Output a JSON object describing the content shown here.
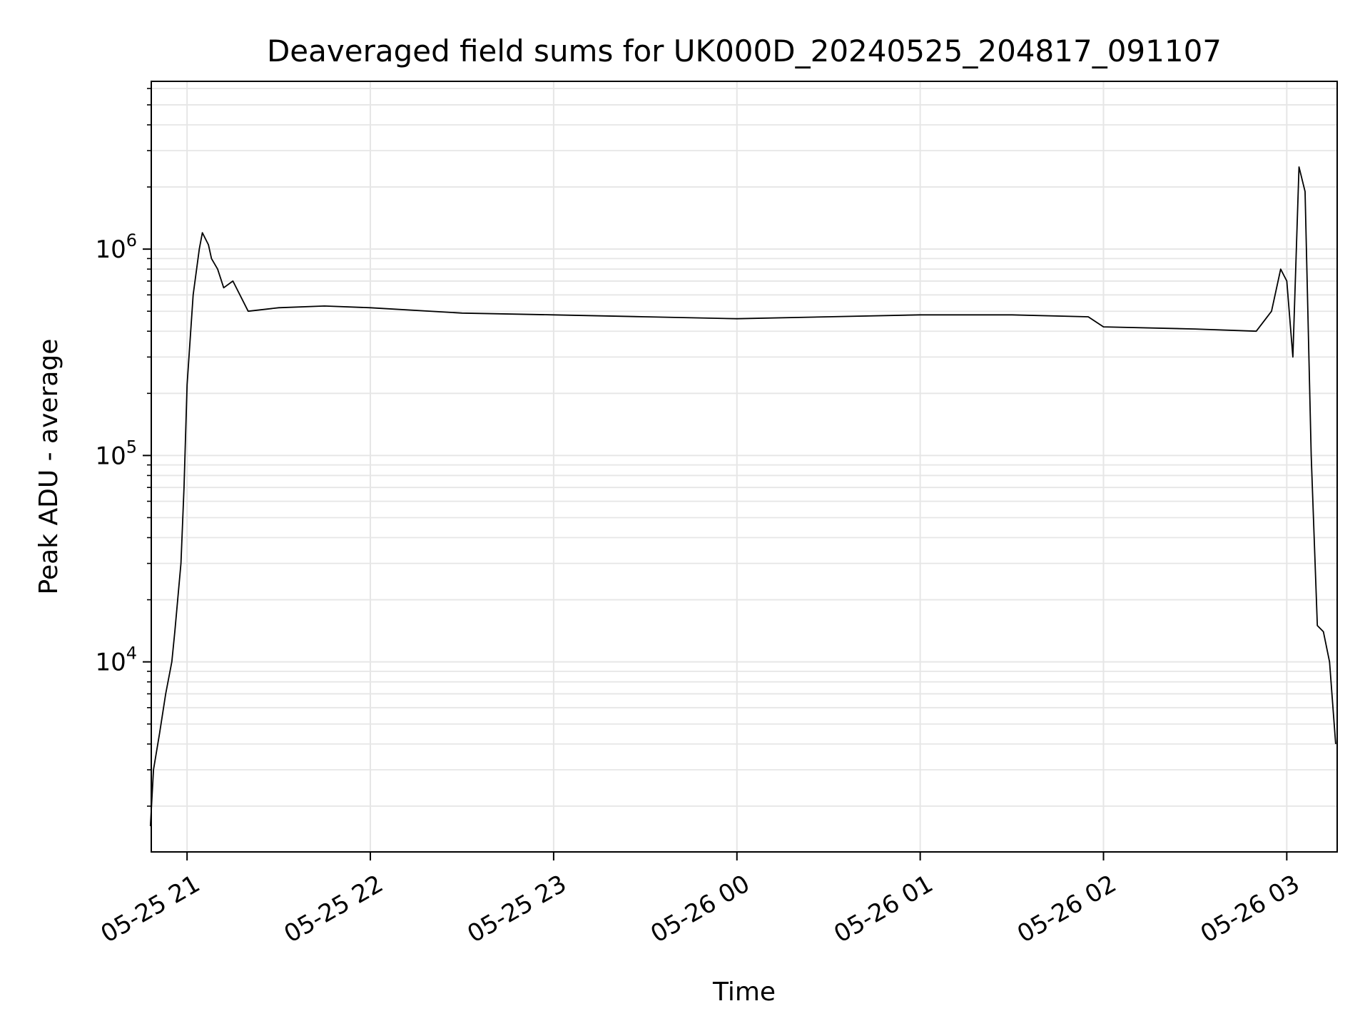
{
  "chart_data": {
    "type": "line",
    "title": "Deaveraged field sums for UK000D_20240525_204817_091107",
    "xlabel": "Time",
    "ylabel": "Peak ADU - average",
    "x_range": [
      "2024-05-25 20:48:17",
      "2024-05-26 03:16:30"
    ],
    "y_scale": "log",
    "ylim": [
      1200,
      6500000
    ],
    "x_ticks": [
      {
        "value": "2024-05-25 21:00",
        "label": "05-25 21"
      },
      {
        "value": "2024-05-25 22:00",
        "label": "05-25 22"
      },
      {
        "value": "2024-05-25 23:00",
        "label": "05-25 23"
      },
      {
        "value": "2024-05-26 00:00",
        "label": "05-26 00"
      },
      {
        "value": "2024-05-26 01:00",
        "label": "05-26 01"
      },
      {
        "value": "2024-05-26 02:00",
        "label": "05-26 02"
      },
      {
        "value": "2024-05-26 03:00",
        "label": "05-26 03"
      }
    ],
    "y_ticks": [
      {
        "value": 10000,
        "base": "10",
        "exponent": "4"
      },
      {
        "value": 100000,
        "base": "10",
        "exponent": "5"
      },
      {
        "value": 1000000,
        "base": "10",
        "exponent": "6"
      }
    ],
    "grid": true,
    "line_color": "#000000",
    "grid_color": "#e6e6e6",
    "series": [
      {
        "x": [
          "2024-05-25 20:48",
          "2024-05-25 20:49",
          "2024-05-25 20:51",
          "2024-05-25 20:53",
          "2024-05-25 20:55",
          "2024-05-25 20:56",
          "2024-05-25 20:58",
          "2024-05-25 20:59",
          "2024-05-25 21:00",
          "2024-05-25 21:02",
          "2024-05-25 21:04",
          "2024-05-25 21:05",
          "2024-05-25 21:07",
          "2024-05-25 21:08",
          "2024-05-25 21:10",
          "2024-05-25 21:12",
          "2024-05-25 21:15",
          "2024-05-25 21:20",
          "2024-05-25 21:30",
          "2024-05-25 21:45",
          "2024-05-25 22:00",
          "2024-05-25 22:30",
          "2024-05-25 23:00",
          "2024-05-25 23:30",
          "2024-05-26 00:00",
          "2024-05-26 00:30",
          "2024-05-26 01:00",
          "2024-05-26 01:30",
          "2024-05-26 01:55",
          "2024-05-26 02:00",
          "2024-05-26 02:30",
          "2024-05-26 02:50",
          "2024-05-26 02:55",
          "2024-05-26 02:58",
          "2024-05-26 03:00",
          "2024-05-26 03:02",
          "2024-05-26 03:04",
          "2024-05-26 03:06",
          "2024-05-26 03:08",
          "2024-05-26 03:10",
          "2024-05-26 03:12",
          "2024-05-26 03:14",
          "2024-05-26 03:16"
        ],
        "values": [
          1600,
          3000,
          4500,
          7000,
          10000,
          14000,
          30000,
          70000,
          220000,
          600000,
          1000000,
          1200000,
          1050000,
          900000,
          800000,
          650000,
          700000,
          500000,
          520000,
          530000,
          520000,
          490000,
          480000,
          470000,
          460000,
          470000,
          480000,
          480000,
          470000,
          420000,
          410000,
          400000,
          500000,
          800000,
          700000,
          300000,
          2500000,
          1900000,
          100000,
          15000,
          14000,
          10000,
          4000
        ]
      }
    ]
  }
}
